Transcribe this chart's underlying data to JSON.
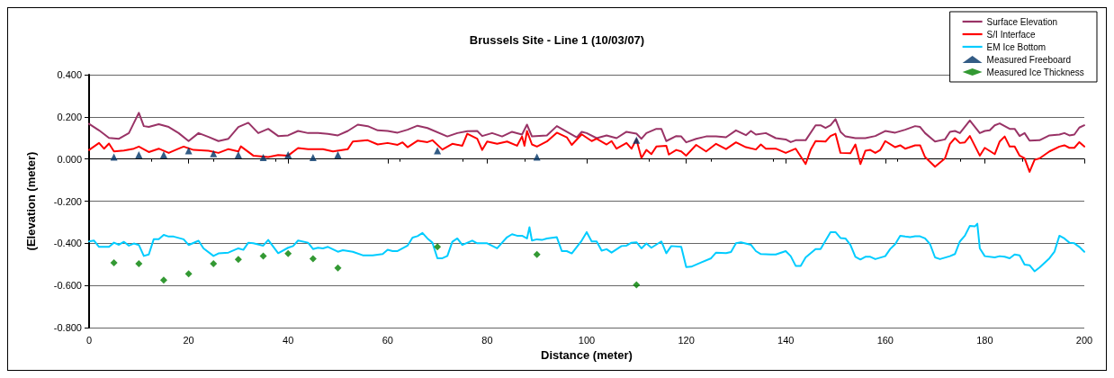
{
  "chart_data": {
    "type": "line",
    "title": "Brussels Site - Line 1 (10/03/07)",
    "xlabel": "Distance (meter)",
    "ylabel": "(Elevation (meter)",
    "xlim": [
      0,
      200
    ],
    "xticks": [
      0,
      20,
      40,
      60,
      80,
      100,
      120,
      140,
      160,
      180,
      200
    ],
    "ylim": [
      -0.8,
      0.4
    ],
    "yticks": [
      {
        "value": -0.8,
        "label": "-0.800"
      },
      {
        "value": -0.6,
        "label": "-0.600"
      },
      {
        "value": -0.4,
        "label": "-0.400"
      },
      {
        "value": -0.2,
        "label": "-0.200"
      },
      {
        "value": 0,
        "label": "0.000"
      },
      {
        "value": 0.2,
        "label": "0.200"
      },
      {
        "value": 0.4,
        "label": "0.400"
      }
    ],
    "grid": "y",
    "legend": "top right",
    "series": [
      {
        "name": "Surface Elevation",
        "marker": "none",
        "color": "#993366",
        "x": [
          0,
          2,
          4,
          6,
          8,
          10,
          11,
          12,
          14,
          16,
          18,
          20,
          22,
          24,
          26,
          28,
          30,
          32,
          34,
          36,
          38,
          40,
          42,
          44,
          46,
          48,
          50,
          52,
          54,
          56,
          58,
          60,
          62,
          64,
          66,
          68,
          72,
          74,
          76,
          78,
          79,
          81,
          83,
          85,
          87,
          88,
          89,
          92,
          94,
          96,
          98,
          99,
          100,
          102,
          104,
          106,
          108,
          110,
          111,
          112,
          114,
          115,
          116,
          118,
          119,
          120,
          122,
          124,
          126,
          128,
          130,
          132,
          133,
          134,
          136,
          138,
          140,
          141,
          142,
          144,
          146,
          147,
          148,
          149,
          150,
          151,
          152,
          154,
          156,
          158,
          160,
          162,
          164,
          166,
          167,
          168,
          170,
          172,
          173,
          174,
          175,
          177,
          179,
          180,
          181,
          182,
          183,
          185,
          186,
          187,
          188,
          189,
          191,
          193,
          195,
          196,
          197,
          198,
          199,
          200
        ],
        "values": [
          0.167,
          0.136,
          0.1,
          0.096,
          0.123,
          0.219,
          0.156,
          0.152,
          0.165,
          0.152,
          0.123,
          0.085,
          0.123,
          0.105,
          0.085,
          0.096,
          0.152,
          0.172,
          0.123,
          0.143,
          0.109,
          0.112,
          0.133,
          0.123,
          0.123,
          0.119,
          0.112,
          0.133,
          0.163,
          0.156,
          0.136,
          0.133,
          0.125,
          0.139,
          0.158,
          0.147,
          0.107,
          0.123,
          0.132,
          0.133,
          0.109,
          0.123,
          0.107,
          0.129,
          0.116,
          0.163,
          0.107,
          0.112,
          0.156,
          0.129,
          0.103,
          0.129,
          0.123,
          0.099,
          0.112,
          0.099,
          0.129,
          0.12,
          0.096,
          0.123,
          0.143,
          0.143,
          0.085,
          0.109,
          0.107,
          0.079,
          0.096,
          0.107,
          0.107,
          0.103,
          0.136,
          0.113,
          0.133,
          0.116,
          0.123,
          0.099,
          0.093,
          0.08,
          0.089,
          0.089,
          0.16,
          0.16,
          0.147,
          0.16,
          0.189,
          0.129,
          0.107,
          0.099,
          0.099,
          0.109,
          0.133,
          0.125,
          0.139,
          0.156,
          0.152,
          0.123,
          0.083,
          0.093,
          0.129,
          0.133,
          0.123,
          0.183,
          0.123,
          0.133,
          0.136,
          0.16,
          0.169,
          0.143,
          0.143,
          0.109,
          0.123,
          0.087,
          0.089,
          0.112,
          0.116,
          0.123,
          0.112,
          0.116,
          0.149,
          0.16
        ]
      },
      {
        "name": "S/I Interface",
        "marker": "none",
        "color": "#ff0000",
        "x": [
          0,
          2,
          3,
          4,
          5,
          7,
          9,
          10,
          12,
          14,
          16,
          18,
          19,
          21,
          24,
          26,
          28,
          30,
          30.5,
          33,
          36,
          38,
          40,
          42,
          44,
          47,
          49,
          52,
          53,
          56,
          58,
          60,
          62,
          63,
          64,
          66,
          68,
          69,
          71,
          73,
          75,
          76,
          78,
          79,
          80,
          82,
          84,
          86,
          87,
          87.5,
          88,
          89,
          90,
          92,
          94,
          96,
          97,
          99,
          101,
          102,
          104,
          105,
          106,
          108,
          109,
          110,
          111,
          112,
          113,
          114,
          116,
          116.5,
          118,
          119,
          120,
          122,
          124,
          126,
          128,
          130,
          132,
          134,
          135,
          136,
          138,
          140,
          142,
          144,
          145,
          146,
          148,
          149,
          150,
          151,
          153,
          154,
          155,
          156,
          157,
          158,
          159,
          160,
          162,
          163,
          164,
          166,
          167,
          168,
          170,
          172,
          173,
          174,
          175,
          176,
          177,
          179,
          180,
          182,
          183,
          184,
          185,
          186,
          187,
          188,
          189,
          190,
          191,
          193,
          195,
          196,
          197,
          198,
          199,
          200
        ],
        "values": [
          0.043,
          0.076,
          0.049,
          0.073,
          0.036,
          0.04,
          0.049,
          0.059,
          0.033,
          0.049,
          0.029,
          0.049,
          0.059,
          0.043,
          0.039,
          0.029,
          0.047,
          0.036,
          0.06,
          0.016,
          0.009,
          0.019,
          0.016,
          0.052,
          0.047,
          0.047,
          0.036,
          0.047,
          0.083,
          0.089,
          0.069,
          0.076,
          0.067,
          0.079,
          0.056,
          0.087,
          0.08,
          0.089,
          0.045,
          0.072,
          0.063,
          0.12,
          0.096,
          0.043,
          0.083,
          0.072,
          0.083,
          0.063,
          0.107,
          0.063,
          0.133,
          0.069,
          0.059,
          0.083,
          0.125,
          0.103,
          0.067,
          0.117,
          0.085,
          0.096,
          0.069,
          0.085,
          0.049,
          0.076,
          0.049,
          0.093,
          0.005,
          0.043,
          0.023,
          0.059,
          0.063,
          0.021,
          0.043,
          0.036,
          0.016,
          0.067,
          0.036,
          0.072,
          0.047,
          0.079,
          0.056,
          0.045,
          0.069,
          0.049,
          0.049,
          0.029,
          0.049,
          -0.024,
          0.043,
          0.085,
          0.083,
          0.109,
          0.12,
          0.029,
          0.027,
          0.069,
          -0.024,
          0.039,
          0.043,
          0.029,
          0.043,
          0.085,
          0.056,
          0.065,
          0.049,
          0.065,
          0.065,
          0.009,
          -0.037,
          0.003,
          0.072,
          0.099,
          0.076,
          0.079,
          0.109,
          0.016,
          0.053,
          0.023,
          0.083,
          0.107,
          0.059,
          0.059,
          0.016,
          0.003,
          -0.061,
          -0.004,
          0.003,
          0.036,
          0.059,
          0.065,
          0.053,
          0.053,
          0.08,
          0.059
        ]
      },
      {
        "name": "EM Ice Bottom",
        "marker": "none",
        "color": "#00ccff",
        "x": [
          0,
          1,
          2,
          4,
          5,
          6,
          7,
          8,
          9,
          10,
          11,
          12,
          13,
          14,
          15,
          16,
          17,
          19,
          20,
          22,
          23,
          25,
          26,
          28,
          30,
          31,
          32,
          33,
          35,
          36,
          38,
          40,
          41,
          42,
          44,
          45,
          46,
          47,
          48,
          50,
          51,
          53,
          55,
          57,
          59,
          60,
          61,
          62,
          64,
          65,
          66,
          67,
          68,
          69,
          70,
          71,
          72,
          73,
          74,
          75,
          77,
          78,
          80,
          82,
          83,
          84,
          85,
          86,
          87,
          88,
          88.5,
          89,
          90,
          91,
          92,
          94,
          95,
          96,
          97,
          99,
          100,
          101,
          102,
          103,
          104,
          105,
          107,
          108,
          109,
          110,
          111,
          112,
          113,
          115,
          116,
          117,
          119,
          120,
          121,
          123,
          125,
          126,
          128,
          129,
          130,
          131,
          133,
          134,
          135,
          137,
          138,
          140,
          141,
          142,
          143,
          144,
          146,
          147,
          149,
          150,
          151,
          152,
          153,
          154,
          155,
          156,
          157,
          158,
          160,
          161,
          162,
          163,
          164,
          165,
          166,
          167,
          168,
          169,
          170,
          171,
          173,
          174,
          175,
          176,
          177,
          178,
          178.5,
          179,
          180,
          182,
          183,
          184,
          185,
          186,
          187,
          188,
          189,
          190,
          191,
          193,
          194,
          195,
          196,
          197,
          198,
          199,
          200
        ],
        "values": [
          -0.391,
          -0.387,
          -0.417,
          -0.417,
          -0.397,
          -0.407,
          -0.393,
          -0.411,
          -0.401,
          -0.408,
          -0.46,
          -0.453,
          -0.38,
          -0.38,
          -0.36,
          -0.368,
          -0.368,
          -0.381,
          -0.408,
          -0.388,
          -0.424,
          -0.46,
          -0.448,
          -0.444,
          -0.424,
          -0.431,
          -0.397,
          -0.4,
          -0.411,
          -0.384,
          -0.447,
          -0.421,
          -0.413,
          -0.387,
          -0.397,
          -0.427,
          -0.421,
          -0.424,
          -0.417,
          -0.44,
          -0.433,
          -0.44,
          -0.457,
          -0.457,
          -0.451,
          -0.431,
          -0.437,
          -0.437,
          -0.411,
          -0.373,
          -0.366,
          -0.351,
          -0.377,
          -0.397,
          -0.471,
          -0.471,
          -0.46,
          -0.393,
          -0.377,
          -0.408,
          -0.387,
          -0.4,
          -0.4,
          -0.424,
          -0.397,
          -0.371,
          -0.357,
          -0.364,
          -0.364,
          -0.377,
          -0.324,
          -0.387,
          -0.381,
          -0.384,
          -0.377,
          -0.371,
          -0.437,
          -0.437,
          -0.448,
          -0.387,
          -0.347,
          -0.391,
          -0.391,
          -0.435,
          -0.428,
          -0.444,
          -0.413,
          -0.411,
          -0.397,
          -0.395,
          -0.424,
          -0.401,
          -0.421,
          -0.391,
          -0.447,
          -0.413,
          -0.417,
          -0.513,
          -0.511,
          -0.491,
          -0.471,
          -0.444,
          -0.447,
          -0.441,
          -0.4,
          -0.395,
          -0.407,
          -0.437,
          -0.451,
          -0.453,
          -0.453,
          -0.437,
          -0.461,
          -0.507,
          -0.507,
          -0.467,
          -0.427,
          -0.427,
          -0.347,
          -0.347,
          -0.375,
          -0.377,
          -0.408,
          -0.464,
          -0.477,
          -0.464,
          -0.464,
          -0.475,
          -0.461,
          -0.427,
          -0.404,
          -0.364,
          -0.368,
          -0.371,
          -0.367,
          -0.367,
          -0.377,
          -0.404,
          -0.467,
          -0.475,
          -0.461,
          -0.451,
          -0.391,
          -0.364,
          -0.317,
          -0.32,
          -0.307,
          -0.424,
          -0.461,
          -0.467,
          -0.461,
          -0.464,
          -0.471,
          -0.453,
          -0.457,
          -0.501,
          -0.504,
          -0.533,
          -0.515,
          -0.471,
          -0.44,
          -0.364,
          -0.377,
          -0.397,
          -0.4,
          -0.417,
          -0.44
        ]
      },
      {
        "name": "Measured Freeboard",
        "type": "scatter",
        "marker": "triangle",
        "color": "#003366",
        "x": [
          5,
          10,
          15,
          20,
          25,
          30,
          35,
          40,
          45,
          50,
          70,
          90,
          110
        ],
        "values": [
          0.009,
          0.02,
          0.02,
          0.039,
          0.025,
          0.02,
          0.007,
          0.02,
          0.007,
          0.02,
          0.039,
          0.009,
          0.089
        ]
      },
      {
        "name": "Measured Ice Thickness",
        "type": "scatter",
        "marker": "diamond",
        "color": "#008000",
        "x": [
          5,
          10,
          15,
          20,
          25,
          30,
          35,
          40,
          45,
          50,
          70,
          90,
          110
        ],
        "values": [
          -0.493,
          -0.497,
          -0.575,
          -0.545,
          -0.497,
          -0.477,
          -0.461,
          -0.449,
          -0.473,
          -0.517,
          -0.417,
          -0.453,
          -0.597
        ]
      }
    ]
  }
}
